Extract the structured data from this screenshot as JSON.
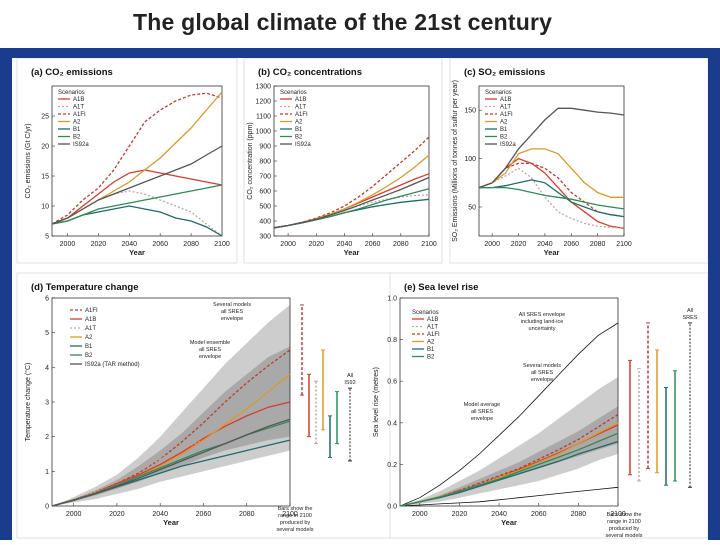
{
  "title": "The global climate of the 21st century",
  "colors": {
    "A1B": "#d93b2b",
    "A1T": "#c2a6a0",
    "A1FI": "#c0392b",
    "A2": "#d99a28",
    "B1": "#1e6b6b",
    "B2": "#2e8b57",
    "IS92a": "#555555",
    "envelope": "#b8b8b8",
    "frame": "#1b3c8c"
  },
  "chart_data": [
    {
      "id": "co2-emissions",
      "type": "line",
      "title": "(a) CO₂ emissions",
      "xlabel": "Year",
      "ylabel": "CO₂ emissions (Gt C/yr)",
      "xlim": [
        1990,
        2100
      ],
      "ylim": [
        5,
        30
      ],
      "xticks": [
        2000,
        2020,
        2040,
        2060,
        2080,
        2100
      ],
      "yticks": [
        5,
        10,
        15,
        20,
        25
      ],
      "legend_title": "Scenarios",
      "x": [
        1990,
        2000,
        2010,
        2020,
        2030,
        2040,
        2050,
        2060,
        2070,
        2080,
        2090,
        2100
      ],
      "series": [
        {
          "name": "A1B",
          "values": [
            7,
            8,
            10,
            12,
            14,
            15.5,
            16,
            15.5,
            15,
            14.5,
            14,
            13.5
          ]
        },
        {
          "name": "A1T",
          "values": [
            7,
            8,
            9.5,
            11,
            12,
            12.5,
            12,
            11,
            10,
            9,
            7,
            5
          ]
        },
        {
          "name": "A1FI",
          "values": [
            7,
            8.5,
            11,
            13,
            16,
            20,
            24,
            26,
            27.5,
            28.5,
            28.8,
            28
          ]
        },
        {
          "name": "A2",
          "values": [
            7,
            8,
            9.5,
            11,
            12.5,
            14,
            16,
            18,
            20.5,
            23,
            26,
            29
          ]
        },
        {
          "name": "B1",
          "values": [
            7,
            7.5,
            8.5,
            9,
            9.5,
            10,
            9.5,
            9,
            8,
            7.5,
            6.5,
            5
          ]
        },
        {
          "name": "B2",
          "values": [
            7,
            7.5,
            8.5,
            9.5,
            10,
            10.5,
            11,
            11.5,
            12,
            12.5,
            13,
            13.5
          ]
        },
        {
          "name": "IS92a",
          "values": [
            7,
            8,
            9.5,
            11,
            12,
            13,
            14,
            15,
            16,
            17,
            18.5,
            20
          ]
        }
      ]
    },
    {
      "id": "co2-concentrations",
      "type": "line",
      "title": "(b) CO₂ concentrations",
      "xlabel": "Year",
      "ylabel": "CO₂ concentration (ppm)",
      "xlim": [
        1990,
        2100
      ],
      "ylim": [
        300,
        1300
      ],
      "xticks": [
        2000,
        2020,
        2040,
        2060,
        2080,
        2100
      ],
      "yticks": [
        300,
        400,
        500,
        600,
        700,
        800,
        900,
        1000,
        1100,
        1200,
        1300
      ],
      "legend_title": "Scenarios",
      "x": [
        1990,
        2000,
        2010,
        2020,
        2030,
        2040,
        2050,
        2060,
        2070,
        2080,
        2090,
        2100
      ],
      "series": [
        {
          "name": "A1B",
          "values": [
            355,
            370,
            390,
            415,
            445,
            480,
            520,
            560,
            600,
            640,
            680,
            715
          ]
        },
        {
          "name": "A1T",
          "values": [
            355,
            370,
            390,
            410,
            440,
            470,
            500,
            525,
            545,
            560,
            570,
            575
          ]
        },
        {
          "name": "A1FI",
          "values": [
            355,
            370,
            392,
            420,
            455,
            500,
            560,
            630,
            710,
            790,
            870,
            960
          ]
        },
        {
          "name": "A2",
          "values": [
            355,
            370,
            390,
            415,
            445,
            480,
            525,
            575,
            630,
            690,
            760,
            840
          ]
        },
        {
          "name": "B1",
          "values": [
            355,
            370,
            388,
            408,
            430,
            455,
            475,
            495,
            510,
            525,
            535,
            545
          ]
        },
        {
          "name": "B2",
          "values": [
            355,
            370,
            388,
            408,
            430,
            455,
            480,
            510,
            540,
            565,
            590,
            615
          ]
        },
        {
          "name": "IS92a",
          "values": [
            355,
            370,
            390,
            412,
            440,
            470,
            505,
            540,
            575,
            610,
            650,
            690
          ]
        }
      ]
    },
    {
      "id": "so2-emissions",
      "type": "line",
      "title": "(c) SO₂ emissions",
      "xlabel": "Year",
      "ylabel": "SO₂ Emissions (Millions of tonnes of sulfur per year)",
      "xlim": [
        1990,
        2100
      ],
      "ylim": [
        20,
        175
      ],
      "xticks": [
        2000,
        2020,
        2040,
        2060,
        2080,
        2100
      ],
      "yticks": [
        50,
        100,
        150
      ],
      "legend_title": "Scenarios",
      "x": [
        1990,
        2000,
        2010,
        2020,
        2030,
        2040,
        2050,
        2060,
        2070,
        2080,
        2090,
        2100
      ],
      "series": [
        {
          "name": "A1B",
          "values": [
            70,
            75,
            90,
            100,
            95,
            85,
            70,
            55,
            45,
            35,
            30,
            28
          ]
        },
        {
          "name": "A1T",
          "values": [
            70,
            75,
            82,
            90,
            80,
            60,
            45,
            38,
            33,
            30,
            29,
            28
          ]
        },
        {
          "name": "A1FI",
          "values": [
            70,
            75,
            90,
            95,
            95,
            90,
            80,
            65,
            55,
            45,
            42,
            40
          ]
        },
        {
          "name": "A2",
          "values": [
            70,
            75,
            85,
            105,
            110,
            110,
            105,
            90,
            75,
            65,
            60,
            60
          ]
        },
        {
          "name": "B1",
          "values": [
            70,
            70,
            72,
            75,
            78,
            75,
            65,
            55,
            50,
            45,
            42,
            40
          ]
        },
        {
          "name": "B2",
          "values": [
            70,
            70,
            70,
            68,
            65,
            62,
            60,
            58,
            55,
            52,
            50,
            48
          ]
        },
        {
          "name": "IS92a",
          "values": [
            70,
            75,
            90,
            110,
            125,
            140,
            152,
            152,
            150,
            148,
            147,
            145
          ]
        }
      ]
    },
    {
      "id": "temperature-change",
      "type": "line",
      "title": "(d) Temperature change",
      "xlabel": "Year",
      "ylabel": "Temperature change (°C)",
      "xlim": [
        1990,
        2100
      ],
      "ylim": [
        0,
        6
      ],
      "xticks": [
        2000,
        2020,
        2040,
        2060,
        2080,
        2100
      ],
      "yticks": [
        0,
        1,
        2,
        3,
        4,
        5,
        6
      ],
      "legend": [
        "A1FI",
        "A1B",
        "A1T",
        "A2",
        "B1",
        "B2",
        "IS92a (TAR method)"
      ],
      "x": [
        1990,
        2000,
        2010,
        2020,
        2030,
        2040,
        2050,
        2060,
        2070,
        2080,
        2090,
        2100
      ],
      "envelope_outer": {
        "lower": [
          0,
          0.1,
          0.2,
          0.35,
          0.5,
          0.7,
          0.85,
          1.0,
          1.15,
          1.3,
          1.45,
          1.6
        ],
        "upper": [
          0,
          0.25,
          0.55,
          0.9,
          1.4,
          2.0,
          2.7,
          3.4,
          4.1,
          4.7,
          5.3,
          5.8
        ]
      },
      "envelope_inner": {
        "lower": [
          0,
          0.15,
          0.3,
          0.5,
          0.7,
          0.95,
          1.15,
          1.4,
          1.6,
          1.75,
          1.9,
          2.0
        ],
        "upper": [
          0,
          0.2,
          0.45,
          0.75,
          1.15,
          1.6,
          2.1,
          2.7,
          3.3,
          3.8,
          4.3,
          4.6
        ]
      },
      "series": [
        {
          "name": "A1FI",
          "values": [
            0,
            0.18,
            0.4,
            0.65,
            0.95,
            1.35,
            1.85,
            2.4,
            3.0,
            3.55,
            4.05,
            4.5
          ]
        },
        {
          "name": "A1B",
          "values": [
            0,
            0.18,
            0.4,
            0.65,
            0.9,
            1.2,
            1.55,
            1.95,
            2.3,
            2.6,
            2.85,
            3.0
          ]
        },
        {
          "name": "A1T",
          "values": [
            0,
            0.18,
            0.42,
            0.7,
            1.0,
            1.35,
            1.65,
            1.9,
            2.1,
            2.3,
            2.45,
            2.6
          ]
        },
        {
          "name": "A2",
          "values": [
            0,
            0.17,
            0.38,
            0.6,
            0.85,
            1.15,
            1.5,
            1.9,
            2.35,
            2.8,
            3.3,
            3.8
          ]
        },
        {
          "name": "B1",
          "values": [
            0,
            0.16,
            0.35,
            0.55,
            0.75,
            0.95,
            1.15,
            1.3,
            1.45,
            1.6,
            1.75,
            1.9
          ]
        },
        {
          "name": "B2",
          "values": [
            0,
            0.17,
            0.37,
            0.6,
            0.85,
            1.1,
            1.35,
            1.6,
            1.8,
            2.05,
            2.25,
            2.45
          ]
        },
        {
          "name": "IS92a",
          "values": [
            0,
            0.17,
            0.36,
            0.57,
            0.8,
            1.05,
            1.3,
            1.55,
            1.8,
            2.05,
            2.3,
            2.5
          ]
        }
      ],
      "bars": [
        {
          "name": "A1FI",
          "low": 3.2,
          "high": 5.8
        },
        {
          "name": "A1B",
          "low": 2.0,
          "high": 3.8
        },
        {
          "name": "A1T",
          "low": 1.8,
          "high": 3.6
        },
        {
          "name": "A2",
          "low": 2.2,
          "high": 4.5
        },
        {
          "name": "B1",
          "low": 1.4,
          "high": 2.6
        },
        {
          "name": "B2",
          "low": 1.8,
          "high": 3.3
        }
      ],
      "all_bar": {
        "label": "All IS92",
        "low": 1.3,
        "high": 3.4
      },
      "annotations": [
        "Several models all SRES envelope",
        "Model ensemble all SRES envelope",
        "Bars show the range in 2100 produced by several models"
      ]
    },
    {
      "id": "sea-level-rise",
      "type": "line",
      "title": "(e) Sea level rise",
      "xlabel": "Year",
      "ylabel": "Sea level rise (metres)",
      "xlim": [
        1990,
        2100
      ],
      "ylim": [
        0,
        1.0
      ],
      "xticks": [
        2000,
        2020,
        2040,
        2060,
        2080,
        2100
      ],
      "yticks": [
        0.0,
        0.2,
        0.4,
        0.6,
        0.8,
        1.0
      ],
      "legend_title": "Scenarios",
      "legend": [
        "A1B",
        "A1T",
        "A1FI",
        "A2",
        "B1",
        "B2"
      ],
      "x": [
        1990,
        2000,
        2010,
        2020,
        2030,
        2040,
        2050,
        2060,
        2070,
        2080,
        2090,
        2100
      ],
      "outer_lines": {
        "upper": [
          0,
          0.04,
          0.1,
          0.17,
          0.25,
          0.34,
          0.43,
          0.53,
          0.63,
          0.73,
          0.82,
          0.88
        ],
        "lower": [
          0,
          0.005,
          0.01,
          0.015,
          0.02,
          0.03,
          0.04,
          0.05,
          0.06,
          0.07,
          0.08,
          0.09
        ]
      },
      "envelope_outer": {
        "lower": [
          0,
          0.01,
          0.02,
          0.04,
          0.06,
          0.08,
          0.1,
          0.12,
          0.15,
          0.18,
          0.22,
          0.25
        ],
        "upper": [
          0,
          0.03,
          0.07,
          0.12,
          0.17,
          0.23,
          0.29,
          0.35,
          0.42,
          0.49,
          0.56,
          0.62
        ]
      },
      "envelope_inner": {
        "lower": [
          0,
          0.015,
          0.04,
          0.06,
          0.09,
          0.12,
          0.15,
          0.18,
          0.21,
          0.24,
          0.27,
          0.3
        ],
        "upper": [
          0,
          0.02,
          0.05,
          0.09,
          0.13,
          0.17,
          0.21,
          0.26,
          0.31,
          0.36,
          0.42,
          0.48
        ]
      },
      "series": [
        {
          "name": "A1B",
          "values": [
            0,
            0.02,
            0.045,
            0.075,
            0.105,
            0.14,
            0.175,
            0.215,
            0.255,
            0.3,
            0.345,
            0.39
          ]
        },
        {
          "name": "A1T",
          "values": [
            0,
            0.02,
            0.045,
            0.075,
            0.105,
            0.14,
            0.17,
            0.205,
            0.24,
            0.28,
            0.32,
            0.36
          ]
        },
        {
          "name": "A1FI",
          "values": [
            0,
            0.02,
            0.045,
            0.075,
            0.11,
            0.145,
            0.18,
            0.225,
            0.27,
            0.32,
            0.38,
            0.44
          ]
        },
        {
          "name": "A2",
          "values": [
            0,
            0.02,
            0.045,
            0.07,
            0.1,
            0.135,
            0.17,
            0.21,
            0.25,
            0.3,
            0.35,
            0.4
          ]
        },
        {
          "name": "B1",
          "values": [
            0,
            0.02,
            0.04,
            0.065,
            0.095,
            0.125,
            0.155,
            0.185,
            0.215,
            0.25,
            0.28,
            0.31
          ]
        },
        {
          "name": "B2",
          "values": [
            0,
            0.02,
            0.043,
            0.07,
            0.1,
            0.13,
            0.165,
            0.2,
            0.235,
            0.27,
            0.31,
            0.35
          ]
        }
      ],
      "bars": [
        {
          "name": "A1B",
          "low": 0.15,
          "high": 0.7
        },
        {
          "name": "A1T",
          "low": 0.12,
          "high": 0.66
        },
        {
          "name": "A1FI",
          "low": 0.18,
          "high": 0.88
        },
        {
          "name": "A2",
          "low": 0.16,
          "high": 0.75
        },
        {
          "name": "B1",
          "low": 0.1,
          "high": 0.57
        },
        {
          "name": "B2",
          "low": 0.12,
          "high": 0.65
        }
      ],
      "all_bar": {
        "label": "All SRES",
        "low": 0.09,
        "high": 0.88
      },
      "annotations": [
        "All SRES envelope including land-ice uncertainty",
        "Several models all SRES envelope",
        "Model average all SRES envelope",
        "Bars show the range in 2100 produced by several models"
      ]
    }
  ]
}
